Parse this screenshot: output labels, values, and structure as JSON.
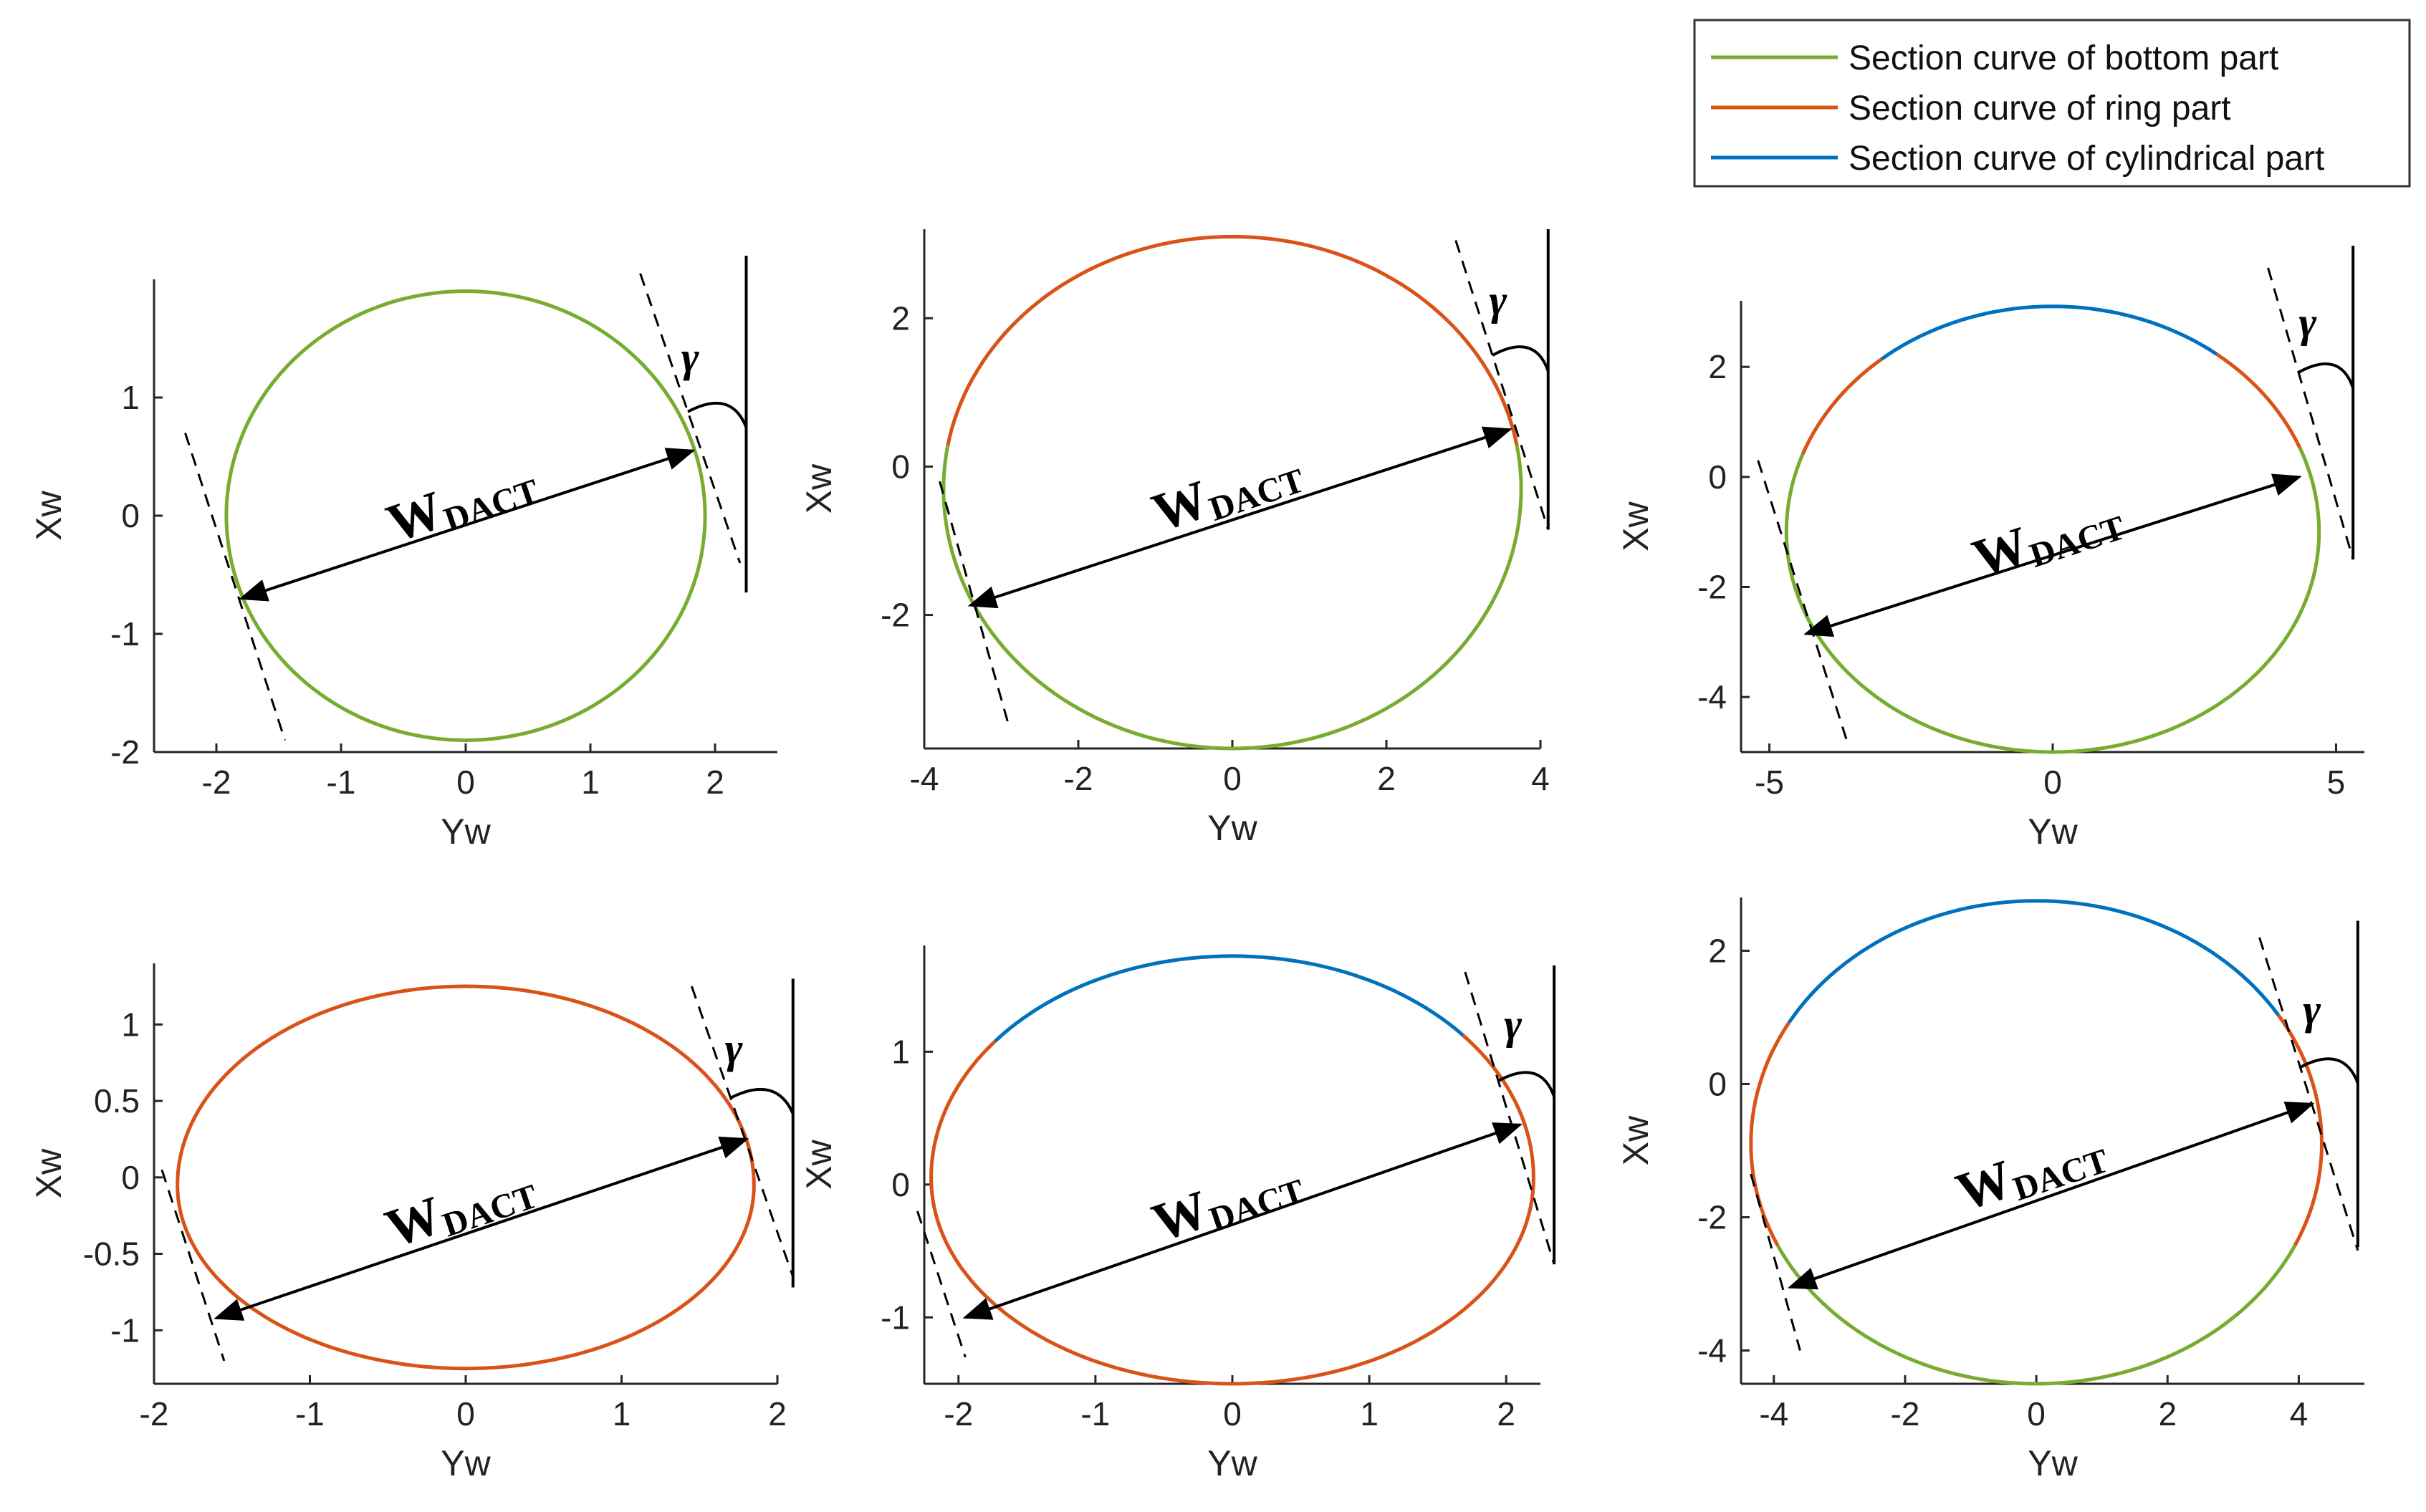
{
  "legend": {
    "placement": "top-right",
    "entries": [
      {
        "label": "Section curve of bottom part",
        "color": "#77ac30"
      },
      {
        "label": "Section curve of ring part",
        "color": "#d95319"
      },
      {
        "label": "Section curve of cylindrical part",
        "color": "#0072bd"
      }
    ]
  },
  "annotations": {
    "width_symbol": "W",
    "width_subscript": "DACT",
    "angle_symbol": "γ"
  },
  "chart_data": [
    {
      "type": "line",
      "xlabel": "Yw",
      "ylabel": "Xw",
      "xlim": [
        -2.5,
        2.5
      ],
      "ylim": [
        -2,
        2
      ],
      "xticks": [
        -2,
        -1,
        0,
        1,
        2
      ],
      "xtick_labels": [
        "-2",
        "-1",
        "0",
        "1",
        "2"
      ],
      "yticks": [
        -2,
        -1,
        0,
        1
      ],
      "ytick_labels": [
        "-2",
        "-1",
        "0",
        "1"
      ],
      "section_curve": {
        "yw_min": -1.92,
        "yw_max": 1.92,
        "xw_min": -1.9,
        "xw_max": 1.9,
        "xw_center": 0
      },
      "segments": [
        {
          "part": "bottom",
          "from_deg": 0,
          "to_deg": 360
        }
      ],
      "width_line": {
        "from": [
          -1.8,
          -0.7
        ],
        "to": [
          1.82,
          0.55
        ]
      },
      "tangent_left": {
        "from": [
          -2.25,
          0.7
        ],
        "to": [
          -1.45,
          -1.9
        ]
      },
      "tangent_right": {
        "from": [
          1.4,
          2.05
        ],
        "to": [
          2.2,
          -0.4
        ]
      },
      "vertical_ref": {
        "yw": 2.25,
        "xw_top": 2.2,
        "xw_bottom": -0.65
      },
      "gamma_arc_xw": 0.88,
      "gamma_label_at": [
        1.8,
        1.22
      ],
      "label_at": [
        0.01,
        -0.02
      ],
      "label_angle": -18.9
    },
    {
      "type": "line",
      "xlabel": "Yw",
      "ylabel": "Xw",
      "xlim": [
        -4,
        4
      ],
      "ylim": [
        -3.8,
        3.2
      ],
      "xticks": [
        -4,
        -2,
        0,
        2,
        4
      ],
      "xtick_labels": [
        "-4",
        "-2",
        "0",
        "2",
        "4"
      ],
      "yticks": [
        -2,
        0,
        2
      ],
      "ytick_labels": [
        "-2",
        "0",
        "2"
      ],
      "section_curve": {
        "yw_min": -3.75,
        "yw_max": 3.75,
        "xw_min": -3.8,
        "xw_max": 3.1,
        "xw_center": -0.3
      },
      "segments": [
        {
          "part": "bottom",
          "from_deg": -10,
          "to_deg": 190
        },
        {
          "part": "ring",
          "from_deg": 190,
          "to_deg": 350
        }
      ],
      "width_line": {
        "from": [
          -3.4,
          -1.87
        ],
        "to": [
          3.6,
          0.5
        ]
      },
      "tangent_left": {
        "from": [
          -3.8,
          -0.2
        ],
        "to": [
          -2.9,
          -3.5
        ]
      },
      "tangent_right": {
        "from": [
          2.9,
          3.05
        ],
        "to": [
          4.1,
          -0.85
        ]
      },
      "vertical_ref": {
        "yw": 4.1,
        "xw_top": 3.2,
        "xw_bottom": -0.85
      },
      "gamma_arc_xw": 1.5,
      "gamma_label_at": [
        3.45,
        2.05
      ],
      "label_at": [
        0.0,
        -0.55
      ],
      "label_angle": -18.7
    },
    {
      "type": "line",
      "xlabel": "Yw",
      "ylabel": "Xw",
      "xlim": [
        -5.5,
        5.5
      ],
      "ylim": [
        -5,
        3.2
      ],
      "xticks": [
        -5,
        0,
        5
      ],
      "xtick_labels": [
        "-5",
        "0",
        "5"
      ],
      "yticks": [
        -4,
        -2,
        0,
        2
      ],
      "ytick_labels": [
        "-4",
        "-2",
        "0",
        "2"
      ],
      "section_curve": {
        "yw_min": -4.7,
        "yw_max": 4.7,
        "xw_min": -5.0,
        "xw_max": 3.1,
        "xw_center": -1.0
      },
      "segments": [
        {
          "part": "bottom",
          "from_deg": -22,
          "to_deg": 200
        },
        {
          "part": "ring",
          "from_deg": 200,
          "to_deg": 230
        },
        {
          "part": "cylindrical",
          "from_deg": 230,
          "to_deg": 308
        },
        {
          "part": "ring",
          "from_deg": 308,
          "to_deg": 338
        }
      ],
      "width_line": {
        "from": [
          -4.35,
          -2.85
        ],
        "to": [
          4.35,
          0.0
        ]
      },
      "tangent_left": {
        "from": [
          -5.2,
          0.3
        ],
        "to": [
          -3.6,
          -4.9
        ]
      },
      "tangent_right": {
        "from": [
          3.8,
          3.8
        ],
        "to": [
          5.3,
          -1.5
        ]
      },
      "vertical_ref": {
        "yw": 5.3,
        "xw_top": 4.2,
        "xw_bottom": -1.5
      },
      "gamma_arc_xw": 1.9,
      "gamma_label_at": [
        4.5,
        2.55
      ],
      "label_at": [
        0.0,
        -1.4
      ],
      "label_angle": -18.1
    },
    {
      "type": "line",
      "xlabel": "Yw",
      "ylabel": "Xw",
      "xlim": [
        -2,
        2
      ],
      "ylim": [
        -1.35,
        1.4
      ],
      "xticks": [
        -2,
        -1,
        0,
        1,
        2
      ],
      "xtick_labels": [
        "-2",
        "-1",
        "0",
        "1",
        "2"
      ],
      "yticks": [
        -1,
        -0.5,
        0,
        0.5,
        1
      ],
      "ytick_labels": [
        "-1",
        "-0.5",
        "0",
        "0.5",
        "1"
      ],
      "section_curve": {
        "yw_min": -1.85,
        "yw_max": 1.85,
        "xw_min": -1.25,
        "xw_max": 1.25,
        "xw_center": -0.05
      },
      "segments": [
        {
          "part": "ring",
          "from_deg": 0,
          "to_deg": 360
        }
      ],
      "width_line": {
        "from": [
          -1.6,
          -0.92
        ],
        "to": [
          1.8,
          0.25
        ]
      },
      "tangent_left": {
        "from": [
          -1.95,
          0.05
        ],
        "to": [
          -1.55,
          -1.2
        ]
      },
      "tangent_right": {
        "from": [
          1.45,
          1.25
        ],
        "to": [
          2.1,
          -0.65
        ]
      },
      "vertical_ref": {
        "yw": 2.1,
        "xw_top": 1.3,
        "xw_bottom": -0.72
      },
      "gamma_arc_xw": 0.52,
      "gamma_label_at": [
        1.72,
        0.75
      ],
      "label_at": [
        0.0,
        -0.3
      ],
      "label_angle": -18.8
    },
    {
      "type": "line",
      "xlabel": "Yw",
      "ylabel": "Xw",
      "xlim": [
        -2.25,
        2.25
      ],
      "ylim": [
        -1.5,
        1.8
      ],
      "xticks": [
        -2,
        -1,
        0,
        1,
        2
      ],
      "xtick_labels": [
        "-2",
        "-1",
        "0",
        "1",
        "2"
      ],
      "yticks": [
        -1,
        0,
        1
      ],
      "ytick_labels": [
        "-1",
        "0",
        "1"
      ],
      "section_curve": {
        "yw_min": -2.2,
        "yw_max": 2.2,
        "xw_min": -1.5,
        "xw_max": 1.72,
        "xw_center": 0.05
      },
      "segments": [
        {
          "part": "ring",
          "from_deg": -40,
          "to_deg": 218
        },
        {
          "part": "cylindrical",
          "from_deg": 218,
          "to_deg": 320
        }
      ],
      "width_line": {
        "from": [
          -1.95,
          -1.0
        ],
        "to": [
          2.1,
          0.45
        ]
      },
      "tangent_left": {
        "from": [
          -2.3,
          -0.2
        ],
        "to": [
          -1.95,
          -1.3
        ]
      },
      "tangent_right": {
        "from": [
          1.7,
          1.6
        ],
        "to": [
          2.35,
          -0.6
        ]
      },
      "vertical_ref": {
        "yw": 2.35,
        "xw_top": 1.65,
        "xw_bottom": -0.6
      },
      "gamma_arc_xw": 0.78,
      "gamma_label_at": [
        2.05,
        1.1
      ],
      "label_at": [
        0.0,
        -0.25
      ],
      "label_angle": -18.5
    },
    {
      "type": "line",
      "xlabel": "Yw",
      "ylabel": "Xw",
      "xlim": [
        -4.5,
        5
      ],
      "ylim": [
        -4.5,
        2.8
      ],
      "xticks": [
        -4,
        -2,
        0,
        2,
        4
      ],
      "xtick_labels": [
        "-4",
        "-2",
        "0",
        "2",
        "4"
      ],
      "yticks": [
        -4,
        -2,
        0,
        2
      ],
      "ytick_labels": [
        "-4",
        "-2",
        "0",
        "2"
      ],
      "section_curve": {
        "yw_min": -4.35,
        "yw_max": 4.35,
        "xw_min": -4.5,
        "xw_max": 2.75,
        "xw_center": -0.9
      },
      "segments": [
        {
          "part": "bottom",
          "from_deg": 25,
          "to_deg": 155
        },
        {
          "part": "ring",
          "from_deg": 155,
          "to_deg": 210
        },
        {
          "part": "cylindrical",
          "from_deg": 210,
          "to_deg": 328
        },
        {
          "part": "ring",
          "from_deg": 328,
          "to_deg": 385
        }
      ],
      "width_line": {
        "from": [
          -3.75,
          -3.05
        ],
        "to": [
          4.2,
          -0.3
        ]
      },
      "tangent_left": {
        "from": [
          -4.35,
          -1.35
        ],
        "to": [
          -3.6,
          -4.0
        ]
      },
      "tangent_right": {
        "from": [
          3.4,
          2.2
        ],
        "to": [
          4.9,
          -2.5
        ]
      },
      "vertical_ref": {
        "yw": 4.9,
        "xw_top": 2.45,
        "xw_bottom": -2.45
      },
      "gamma_arc_xw": 0.25,
      "gamma_label_at": [
        4.2,
        0.9
      ],
      "label_at": [
        0.0,
        -1.55
      ],
      "label_angle": -18.4
    }
  ]
}
